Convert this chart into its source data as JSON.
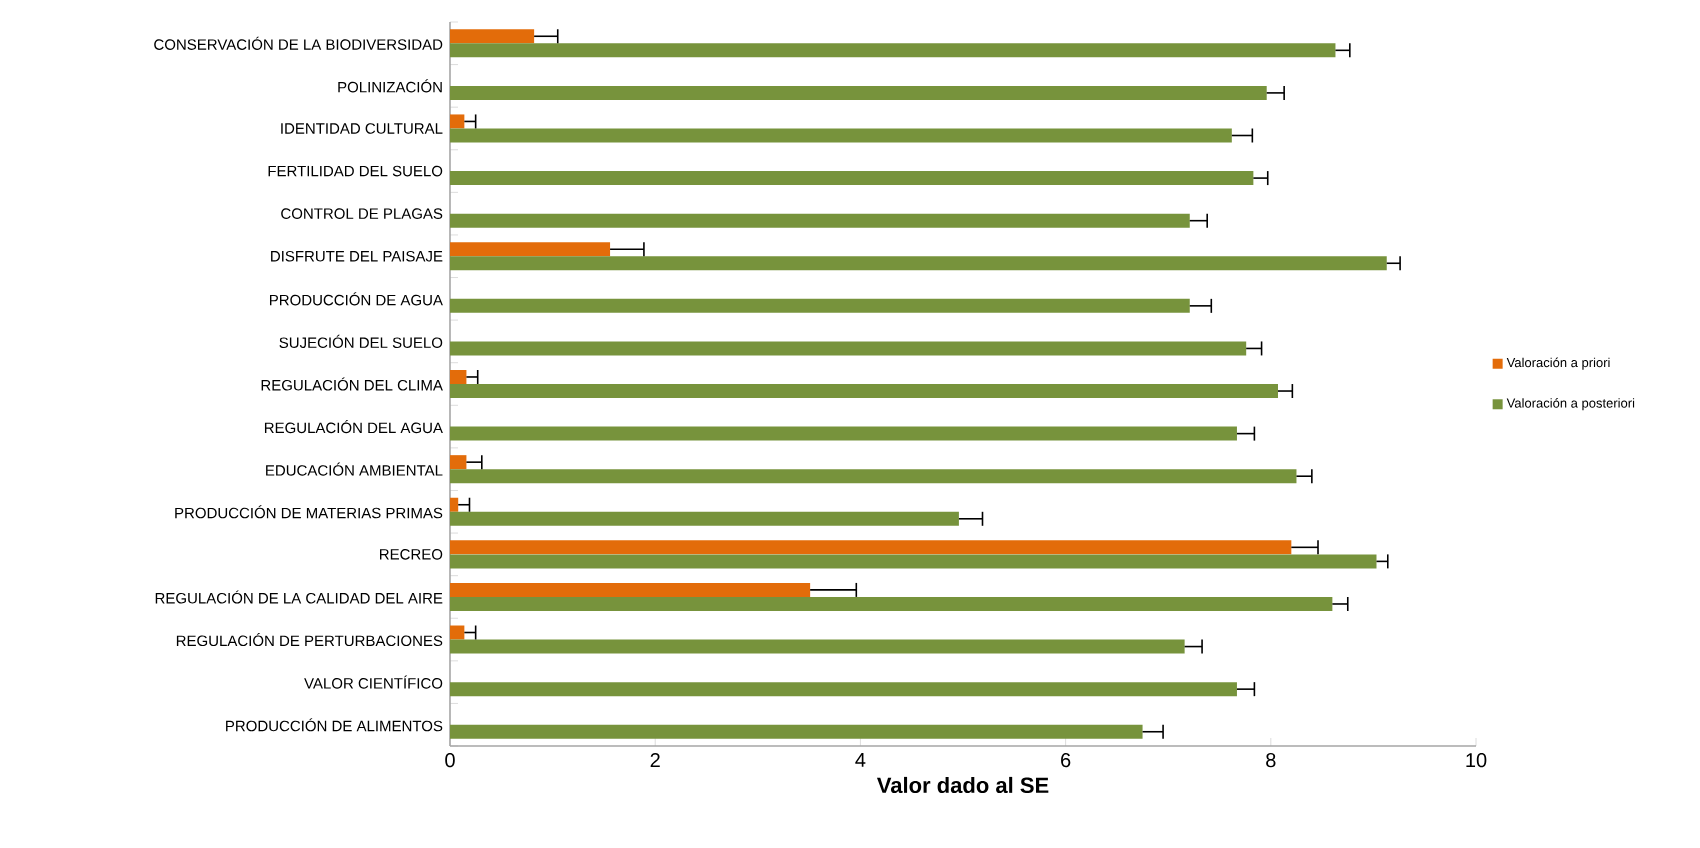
{
  "chart_data": {
    "type": "bar",
    "orientation": "horizontal",
    "xlabel": "Valor dado al SE",
    "categories": [
      "CONSERVACIÓN DE LA BIODIVERSIDAD",
      "POLINIZACIÓN",
      "IDENTIDAD CULTURAL",
      "FERTILIDAD DEL SUELO",
      "CONTROL DE PLAGAS",
      "DISFRUTE DEL PAISAJE",
      "PRODUCCIÓN DE AGUA",
      "SUJECIÓN DEL SUELO",
      "REGULACIÓN DEL CLIMA",
      "REGULACIÓN DEL AGUA",
      "EDUCACIÓN AMBIENTAL",
      "PRODUCCIÓN DE MATERIAS PRIMAS",
      "RECREO",
      "REGULACIÓN DE LA CALIDAD DEL AIRE",
      "REGULACIÓN DE PERTURBACIONES",
      "VALOR CIENTÍFICO",
      "PRODUCCIÓN DE ALIMENTOS"
    ],
    "series": [
      {
        "name": "Valoración a priori",
        "color": "#e36c0a",
        "values": [
          0.82,
          0,
          0.14,
          0,
          0,
          1.56,
          0,
          0,
          0.16,
          0,
          0.16,
          0.08,
          8.2,
          3.51,
          0.14,
          0,
          0
        ],
        "errors": [
          0.23,
          null,
          0.11,
          null,
          null,
          0.33,
          null,
          null,
          0.11,
          null,
          0.15,
          0.11,
          0.26,
          0.45,
          0.11,
          null,
          null
        ]
      },
      {
        "name": "Valoración a posteriori",
        "color": "#77933c",
        "values": [
          8.63,
          7.96,
          7.62,
          7.83,
          7.21,
          9.13,
          7.21,
          7.76,
          8.07,
          7.67,
          8.25,
          4.96,
          9.03,
          8.6,
          7.16,
          7.67,
          6.75
        ],
        "errors": [
          0.14,
          0.17,
          0.2,
          0.14,
          0.17,
          0.13,
          0.21,
          0.15,
          0.14,
          0.17,
          0.15,
          0.23,
          0.11,
          0.15,
          0.17,
          0.17,
          0.2
        ]
      }
    ],
    "xlim": [
      0,
      10
    ],
    "xticks": [
      0,
      2,
      4,
      6,
      8,
      10
    ],
    "legend": "right",
    "grid": false
  }
}
